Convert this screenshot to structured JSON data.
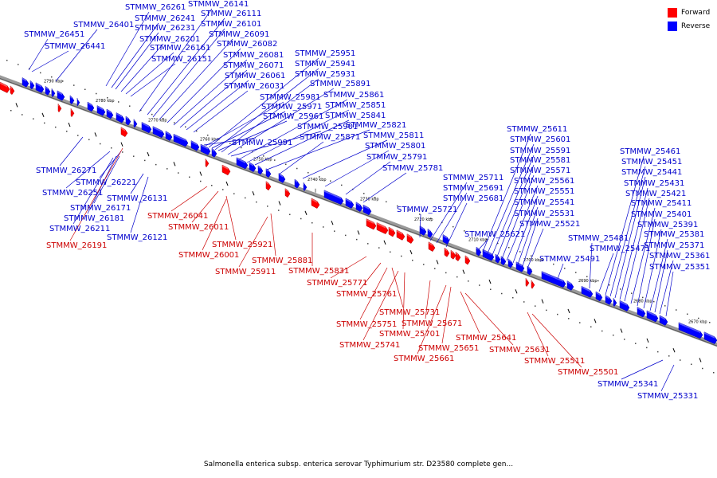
{
  "caption": "Salmonella enterica subsp. enterica serovar Typhimurium str. D23580 complete gen...",
  "legend": {
    "forward": {
      "label": "Forward",
      "color": "#ff0000"
    },
    "reverse": {
      "label": "Reverse",
      "color": "#0000ff"
    }
  },
  "colors": {
    "forward_label": "#cc0000",
    "reverse_label": "#0000cc",
    "backbone": "#777777"
  },
  "ticks": [
    "2790 kbp",
    "2780 kbp",
    "2770 kbp",
    "2760 kbp",
    "2750 kbp",
    "2740 kbp",
    "2730 kbp",
    "2720 kbp",
    "2710 kbp",
    "2700 kbp",
    "2690 kbp",
    "2680 kbp",
    "2670 kbp"
  ],
  "reverse_labels": [
    "STMMW_26261",
    "STMMW_26241",
    "STMMW_26231",
    "STMMW_26201",
    "STMMW_26161",
    "STMMW_26151",
    "STMMW_26141",
    "STMMW_26111",
    "STMMW_26101",
    "STMMW_26091",
    "STMMW_26082",
    "STMMW_26081",
    "STMMW_26071",
    "STMMW_26061",
    "STMMW_26031",
    "STMMW_26451",
    "STMMW_26441",
    "STMMW_26401",
    "STMMW_25951",
    "STMMW_25941",
    "STMMW_25931",
    "STMMW_25891",
    "STMMW_25981",
    "STMMW_25971",
    "STMMW_25961",
    "STMMW_25861",
    "STMMW_25851",
    "STMMW_25841",
    "STMMW_25901",
    "STMMW_25821",
    "STMMW_25871",
    "STMMW_25991",
    "STMMW_25811",
    "STMMW_25801",
    "STMMW_25791",
    "STMMW_25781",
    "STMMW_26271",
    "STMMW_26221",
    "STMMW_26251",
    "STMMW_26131",
    "STMMW_26171",
    "STMMW_26181",
    "STMMW_26211",
    "STMMW_26121",
    "STMMW_25711",
    "STMMW_25691",
    "STMMW_25681",
    "STMMW_25721",
    "STMMW_25611",
    "STMMW_25601",
    "STMMW_25591",
    "STMMW_25581",
    "STMMW_25571",
    "STMMW_25561",
    "STMMW_25551",
    "STMMW_25541",
    "STMMW_25531",
    "STMMW_25521",
    "STMMW_25621",
    "STMMW_25491",
    "STMMW_25481",
    "STMMW_25471",
    "STMMW_25461",
    "STMMW_25451",
    "STMMW_25441",
    "STMMW_25431",
    "STMMW_25421",
    "STMMW_25411",
    "STMMW_25401",
    "STMMW_25391",
    "STMMW_25381",
    "STMMW_25371",
    "STMMW_25361",
    "STMMW_25351",
    "STMMW_25341",
    "STMMW_25331"
  ],
  "forward_labels": [
    "STMMW_26191",
    "STMMW_26041",
    "STMMW_26011",
    "STMMW_25921",
    "STMMW_26001",
    "STMMW_25881",
    "STMMW_25911",
    "STMMW_25831",
    "STMMW_25771",
    "STMMW_25761",
    "STMMW_25731",
    "STMMW_25751",
    "STMMW_25701",
    "STMMW_25671",
    "STMMW_25741",
    "STMMW_25651",
    "STMMW_25661",
    "STMMW_25641",
    "STMMW_25631",
    "STMMW_25511",
    "STMMW_25501"
  ]
}
